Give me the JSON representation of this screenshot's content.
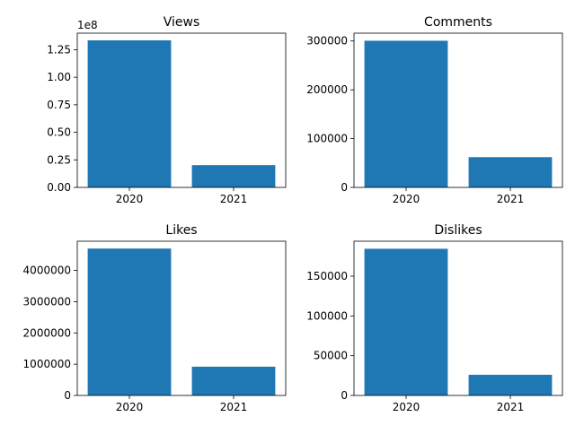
{
  "figure": {
    "layout": "2x2 grid",
    "bar_color": "#1f77b4",
    "background": "#ffffff"
  },
  "chart_data": [
    {
      "type": "bar",
      "title": "Views",
      "categories": [
        "2020",
        "2021"
      ],
      "values": [
        133500000,
        20200000
      ],
      "ylim": [
        0,
        140000000
      ],
      "yticks": [
        0,
        25000000,
        50000000,
        75000000,
        100000000,
        125000000
      ],
      "ytick_labels": [
        "0.00",
        "0.25",
        "0.50",
        "0.75",
        "1.00",
        "1.25"
      ],
      "offset_text": "1e8",
      "xlabel": "",
      "ylabel": "",
      "grid": false,
      "legend": "none"
    },
    {
      "type": "bar",
      "title": "Comments",
      "categories": [
        "2020",
        "2021"
      ],
      "values": [
        300500,
        62000
      ],
      "ylim": [
        0,
        316000
      ],
      "yticks": [
        0,
        100000,
        200000,
        300000
      ],
      "ytick_labels": [
        "0",
        "100000",
        "200000",
        "300000"
      ],
      "offset_text": "",
      "xlabel": "",
      "ylabel": "",
      "grid": false,
      "legend": "none"
    },
    {
      "type": "bar",
      "title": "Likes",
      "categories": [
        "2020",
        "2021"
      ],
      "values": [
        4700000,
        920000
      ],
      "ylim": [
        0,
        4935000
      ],
      "yticks": [
        0,
        1000000,
        2000000,
        3000000,
        4000000
      ],
      "ytick_labels": [
        "0",
        "1000000",
        "2000000",
        "3000000",
        "4000000"
      ],
      "offset_text": "",
      "xlabel": "",
      "ylabel": "",
      "grid": false,
      "legend": "none"
    },
    {
      "type": "bar",
      "title": "Dislikes",
      "categories": [
        "2020",
        "2021"
      ],
      "values": [
        184500,
        26000
      ],
      "ylim": [
        0,
        194000
      ],
      "yticks": [
        0,
        50000,
        100000,
        150000
      ],
      "ytick_labels": [
        "0",
        "50000",
        "100000",
        "150000"
      ],
      "offset_text": "",
      "xlabel": "",
      "ylabel": "",
      "grid": false,
      "legend": "none"
    }
  ]
}
